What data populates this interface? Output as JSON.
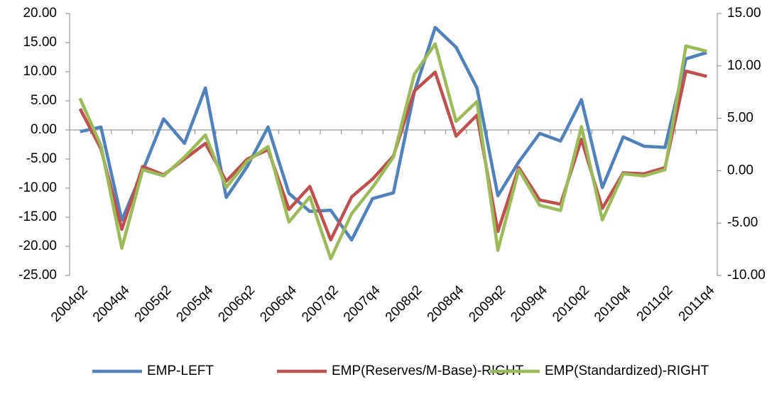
{
  "chart_data": {
    "type": "line",
    "categories": [
      "2004q2",
      null,
      "2004q4",
      null,
      "2005q2",
      null,
      "2005q4",
      null,
      "2006q2",
      null,
      "2006q4",
      null,
      "2007q2",
      null,
      "2007q4",
      null,
      "2008q2",
      null,
      "2008q4",
      null,
      "2009q2",
      null,
      "2009q4",
      null,
      "2010q2",
      null,
      "2010q4",
      null,
      "2011q2",
      null,
      "2011q4"
    ],
    "series": [
      {
        "name": "EMP-LEFT",
        "color": "#4f81bd",
        "axis": "y",
        "values": [
          -0.3,
          0.5,
          -15.5,
          -7,
          1.9,
          -2.3,
          7.2,
          -11.6,
          -6.3,
          0.5,
          -10.9,
          -14,
          -13.8,
          -18.9,
          -11.8,
          -10.8,
          6.5,
          17.6,
          14.2,
          7.2,
          -11.3,
          -5.5,
          -0.6,
          -1.9,
          5.2,
          -9.9,
          -1.2,
          -2.8,
          -3,
          12.2,
          13.3
        ]
      },
      {
        "name": "EMP(Reserves/M-Base)-RIGHT",
        "color": "#c0504d",
        "axis": "y2",
        "values": [
          5.9,
          2.1,
          -5.6,
          0.4,
          -0.4,
          1.1,
          2.6,
          -1,
          1.1,
          2,
          -3.7,
          -1.5,
          -6.6,
          -2.5,
          -0.8,
          1.4,
          7.6,
          9.4,
          3.3,
          5.3,
          -5.8,
          0.3,
          -2.8,
          -3.2,
          3,
          -3.6,
          -0.2,
          -0.3,
          0.3,
          9.5,
          9
        ]
      },
      {
        "name": "EMP(Standardized)-RIGHT",
        "color": "#9bbb59",
        "axis": "y2",
        "values": [
          6.9,
          2.4,
          -7.4,
          0.1,
          -0.5,
          1.3,
          3.4,
          -1.6,
          0.9,
          2.3,
          -4.9,
          -2.5,
          -8.4,
          -4.1,
          -1.6,
          1.3,
          9.2,
          12.1,
          4.7,
          6.6,
          -7.6,
          0.1,
          -3.3,
          -3.8,
          4.2,
          -4.7,
          -0.3,
          -0.5,
          0.1,
          11.9,
          11.4
        ]
      }
    ],
    "ylim": [
      -25,
      20
    ],
    "yticks": [
      {
        "value": -25,
        "label": "-25.00"
      },
      {
        "value": -20,
        "label": "-20.00"
      },
      {
        "value": -15,
        "label": "-15.00"
      },
      {
        "value": -10,
        "label": "-10.00"
      },
      {
        "value": -5,
        "label": "-5.00"
      },
      {
        "value": 0,
        "label": "0.00"
      },
      {
        "value": 5,
        "label": "5.00"
      },
      {
        "value": 10,
        "label": "10.00"
      },
      {
        "value": 15,
        "label": "15.00"
      },
      {
        "value": 20,
        "label": "20.00"
      }
    ],
    "y2lim": [
      -10,
      15
    ],
    "y2ticks": [
      {
        "value": -10,
        "label": "-10.00"
      },
      {
        "value": -5,
        "label": "-5.00"
      },
      {
        "value": 0,
        "label": "0.00"
      },
      {
        "value": 5,
        "label": "5.00"
      },
      {
        "value": 10,
        "label": "10.00"
      },
      {
        "value": 15,
        "label": "15.00"
      }
    ],
    "grid": false,
    "legend": "bottom"
  }
}
